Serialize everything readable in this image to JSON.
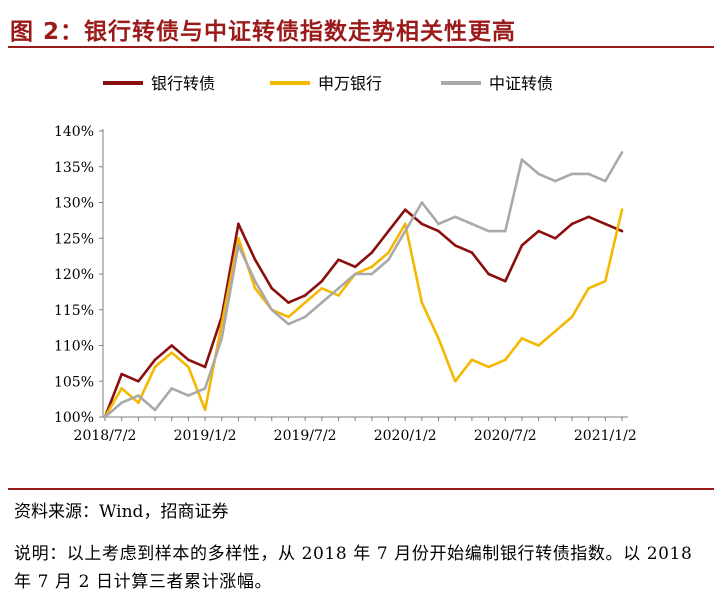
{
  "figure": {
    "title": "图 2：银行转债与中证转债指数走势相关性更高",
    "source": "资料来源：Wind，招商证券",
    "note": "说明：以上考虑到样本的多样性，从 2018 年 7 月份开始编制银行转债指数。以 2018 年 7 月 2 日计算三者累计涨幅。"
  },
  "chart_data": {
    "type": "line",
    "title": "",
    "xlabel": "",
    "ylabel": "",
    "ylim": [
      100,
      140
    ],
    "yticks": [
      "100%",
      "105%",
      "110%",
      "115%",
      "120%",
      "125%",
      "130%",
      "135%",
      "140%"
    ],
    "xticks": [
      "2018/7/2",
      "2019/1/2",
      "2019/7/2",
      "2020/1/2",
      "2020/7/2",
      "2021/1/2"
    ],
    "legend_position": "top",
    "grid": false,
    "x": [
      "2018/7/2",
      "2018/8/2",
      "2018/9/2",
      "2018/10/2",
      "2018/11/2",
      "2018/12/2",
      "2019/1/2",
      "2019/2/2",
      "2019/3/2",
      "2019/4/2",
      "2019/5/2",
      "2019/6/2",
      "2019/7/2",
      "2019/8/2",
      "2019/9/2",
      "2019/10/2",
      "2019/11/2",
      "2019/12/2",
      "2020/1/2",
      "2020/2/2",
      "2020/3/2",
      "2020/4/2",
      "2020/5/2",
      "2020/6/2",
      "2020/7/2",
      "2020/8/2",
      "2020/9/2",
      "2020/10/2",
      "2020/11/2",
      "2020/12/2",
      "2021/1/2",
      "2021/2/2"
    ],
    "series": [
      {
        "name": "银行转债",
        "color": "#8b0e0e",
        "width": 2.6,
        "values": [
          100,
          106,
          105,
          108,
          110,
          108,
          107,
          114,
          127,
          122,
          118,
          116,
          117,
          119,
          122,
          121,
          123,
          126,
          129,
          127,
          126,
          124,
          123,
          120,
          119,
          124,
          126,
          125,
          127,
          128,
          127,
          126
        ]
      },
      {
        "name": "申万银行",
        "color": "#f5b800",
        "width": 2.6,
        "values": [
          100,
          104,
          102,
          107,
          109,
          107,
          101,
          113,
          125,
          118,
          115,
          114,
          116,
          118,
          117,
          120,
          121,
          123,
          127,
          116,
          111,
          105,
          108,
          107,
          108,
          111,
          110,
          112,
          114,
          118,
          119,
          129
        ]
      },
      {
        "name": "中证转债",
        "color": "#a9a9a9",
        "width": 2.6,
        "values": [
          100,
          102,
          103,
          101,
          104,
          103,
          104,
          111,
          124,
          119,
          115,
          113,
          114,
          116,
          118,
          120,
          120,
          122,
          126,
          130,
          127,
          128,
          127,
          126,
          126,
          136,
          134,
          133,
          134,
          134,
          133,
          137
        ]
      }
    ]
  }
}
